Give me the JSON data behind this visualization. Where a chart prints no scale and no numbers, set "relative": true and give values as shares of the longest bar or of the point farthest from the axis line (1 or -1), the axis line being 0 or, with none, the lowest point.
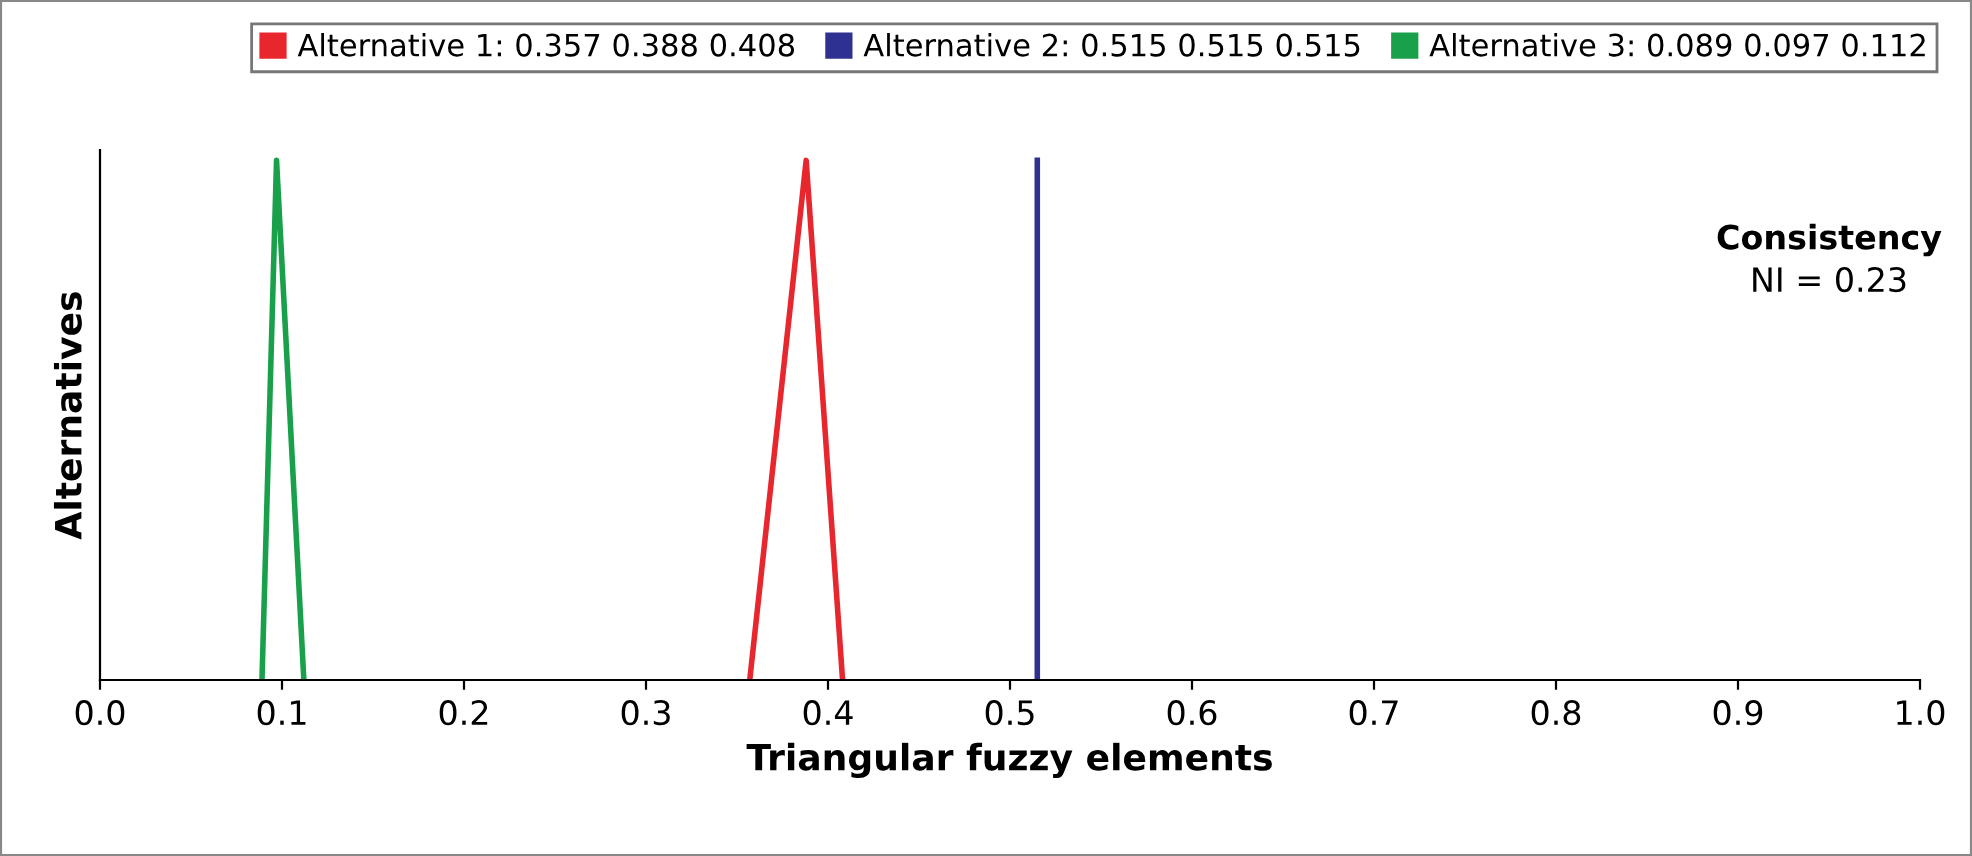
{
  "chart_data": {
    "type": "line",
    "xlabel": "Triangular fuzzy elements",
    "ylabel": "Alternatives",
    "relative": true,
    "xlim": [
      0,
      1
    ],
    "xticks": [
      {
        "value": 0,
        "label": "0.0"
      },
      0.1,
      0.2,
      0.3,
      0.4,
      0.5,
      0.6,
      0.7,
      0.8,
      0.9,
      {
        "value": 1,
        "label": "1.0"
      }
    ],
    "series": [
      {
        "name": "Alternative 1: 0.357 0.388 0.408",
        "color": "#e8262e",
        "x": [
          0.357,
          0.388,
          0.408
        ],
        "values": [
          0,
          1,
          0
        ]
      },
      {
        "name": "Alternative 2: 0.515 0.515 0.515",
        "color": "#2e3192",
        "x": [
          0.515,
          0.515
        ],
        "values": [
          0,
          1
        ]
      },
      {
        "name": "Alternative 3: 0.089 0.097 0.112",
        "color": "#18a04a",
        "x": [
          0.089,
          0.097,
          0.112
        ],
        "values": [
          0,
          1,
          0
        ]
      }
    ],
    "annotations": [
      "Consistency",
      "NI = 0.23"
    ],
    "legend": "top right",
    "grid": false,
    "marker": "none",
    "line_style": "solid"
  }
}
